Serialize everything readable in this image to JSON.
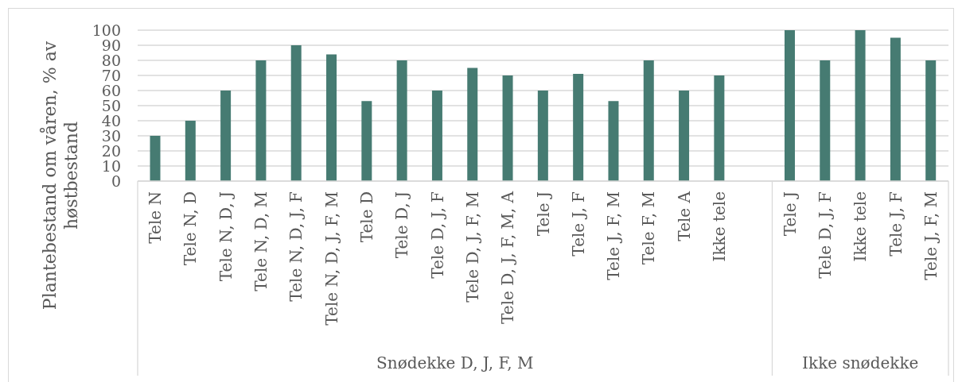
{
  "chart_data": {
    "type": "bar",
    "ylabel": "Plantebestand om våren, % av høstbestand",
    "categories": [
      "Tele N",
      "Tele N, D",
      "Tele N, D, J",
      "Tele N, D, M",
      "Tele N, D, J, F",
      "Tele N, D, J, F, M",
      "Tele D",
      "Tele D, J",
      "Tele D, J, F",
      "Tele D, J, F, M",
      "Tele D, J, F, M, A",
      "Tele J",
      "Tele J, F",
      "Tele J, F, M",
      "Tele F, M",
      "Tele A",
      "Ikke tele",
      null,
      "Tele J",
      "Tele D, J, F",
      "Ikke tele",
      "Tele J, F",
      "Tele J, F, M"
    ],
    "values": [
      30,
      40,
      60,
      80,
      90,
      84,
      53,
      80,
      60,
      75,
      70,
      60,
      71,
      53,
      80,
      60,
      70,
      null,
      100,
      80,
      100,
      95,
      80
    ],
    "color": "#467b72",
    "ylim": [
      0,
      100
    ],
    "yticks": [
      0,
      10,
      20,
      30,
      40,
      50,
      60,
      70,
      80,
      90,
      100
    ],
    "grid": "y",
    "annotations": [
      "Snødekke D, J, F, M",
      "Ikke snødekke"
    ]
  }
}
